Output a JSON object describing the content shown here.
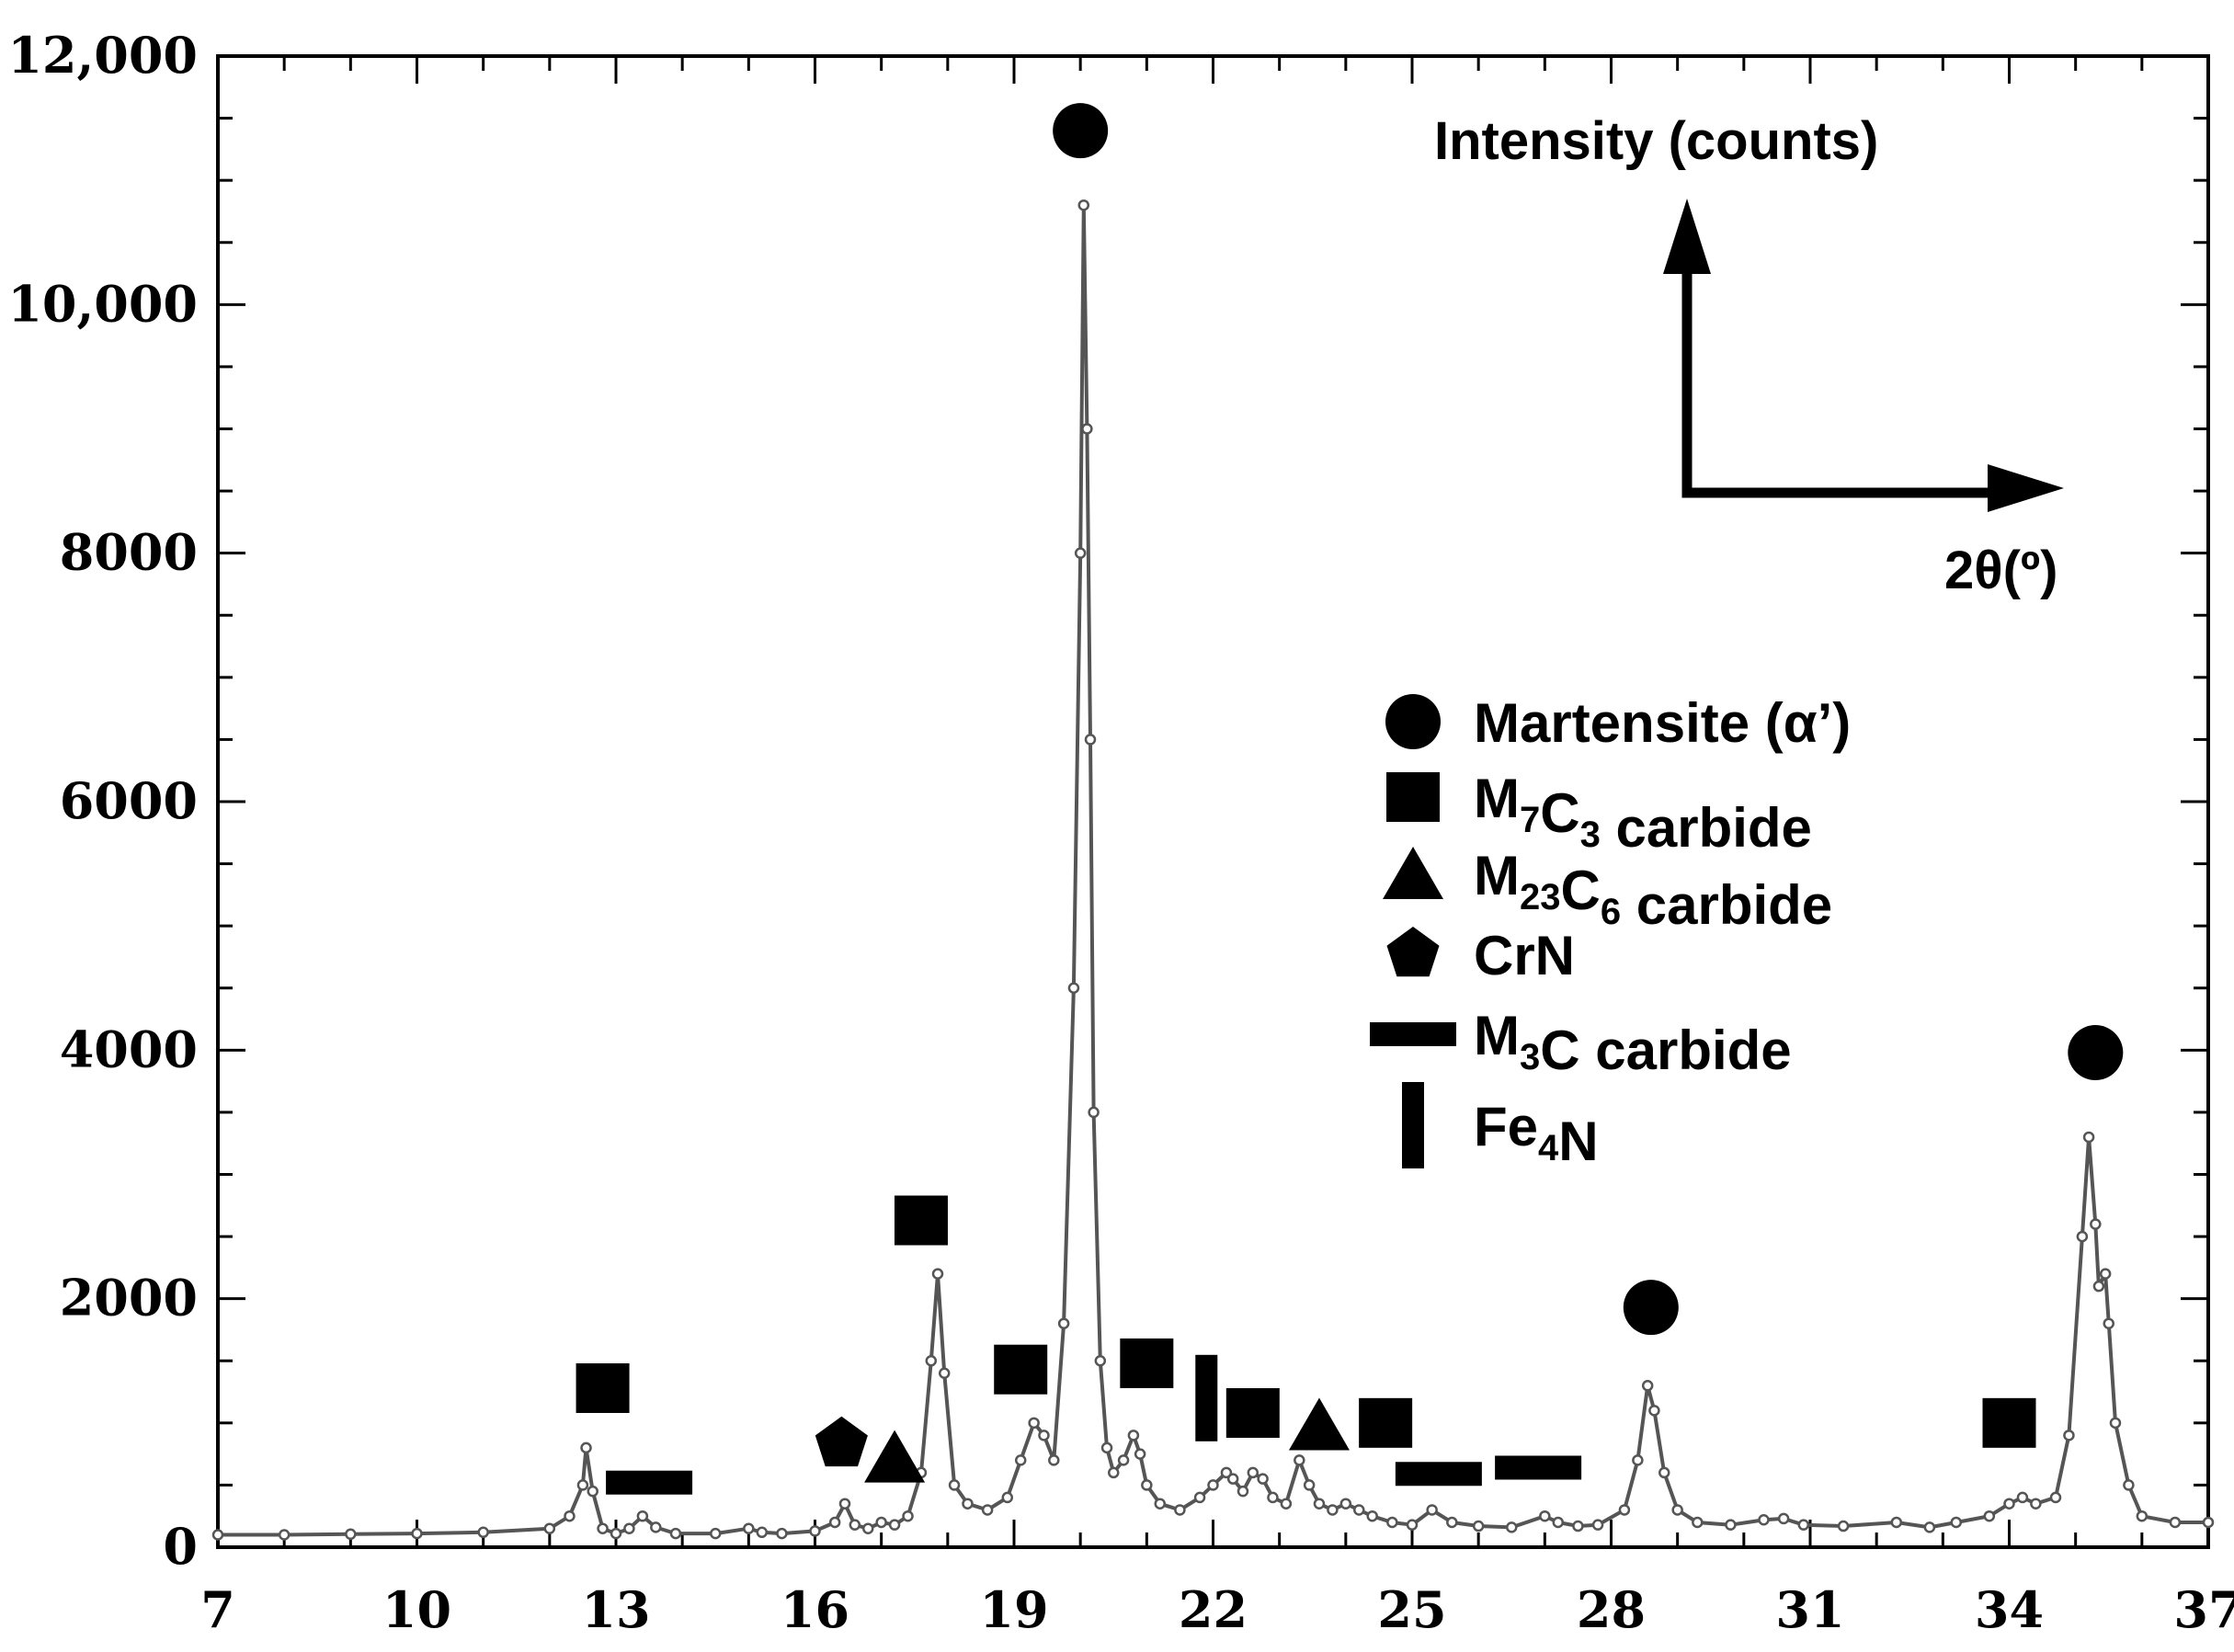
{
  "chart_data": {
    "type": "line",
    "title": "",
    "xlabel": "2θ(º)",
    "ylabel": "Intensity (counts)",
    "xlim": [
      7,
      37
    ],
    "ylim": [
      0,
      12000
    ],
    "grid": false,
    "x_tick_labels": [
      "7",
      "10",
      "13",
      "16",
      "19",
      "22",
      "25",
      "28",
      "31",
      "34",
      "37"
    ],
    "y_tick_labels": [
      "0",
      "2000",
      "4000",
      "6000",
      "8000",
      "10,000",
      "12,000"
    ],
    "line_color": "#555555",
    "series": [
      {
        "x": [
          7.0,
          8.0,
          9.0,
          10.0,
          11.0,
          12.0,
          12.3,
          12.5,
          12.55,
          12.65,
          12.8,
          13.0,
          13.2,
          13.4,
          13.6,
          13.9,
          14.5,
          15.0,
          15.2,
          15.5,
          16.0,
          16.3,
          16.45,
          16.6,
          16.8,
          17.0,
          17.2,
          17.4,
          17.6,
          17.75,
          17.85,
          17.95,
          18.1,
          18.3,
          18.6,
          18.9,
          19.1,
          19.3,
          19.45,
          19.6,
          19.75,
          19.9,
          20.0,
          20.05,
          20.1,
          20.15,
          20.2,
          20.3,
          20.4,
          20.5,
          20.65,
          20.8,
          20.9,
          21.0,
          21.2,
          21.5,
          21.8,
          22.0,
          22.2,
          22.3,
          22.45,
          22.6,
          22.75,
          22.9,
          23.1,
          23.3,
          23.45,
          23.6,
          23.8,
          24.0,
          24.2,
          24.4,
          24.7,
          25.0,
          25.3,
          25.6,
          26.0,
          26.5,
          27.0,
          27.2,
          27.5,
          27.8,
          28.2,
          28.4,
          28.55,
          28.65,
          28.8,
          29.0,
          29.3,
          29.8,
          30.3,
          30.6,
          30.9,
          31.5,
          32.3,
          32.8,
          33.2,
          33.7,
          34.0,
          34.2,
          34.4,
          34.7,
          34.9,
          35.1,
          35.2,
          35.3,
          35.35,
          35.45,
          35.5,
          35.6,
          35.8,
          36.0,
          36.5,
          37.0
        ],
        "y": [
          100,
          100,
          105,
          110,
          120,
          150,
          250,
          500,
          800,
          450,
          150,
          110,
          150,
          250,
          160,
          110,
          110,
          150,
          120,
          110,
          130,
          200,
          350,
          180,
          150,
          200,
          180,
          250,
          600,
          1500,
          2200,
          1400,
          500,
          350,
          300,
          400,
          700,
          1000,
          900,
          700,
          1800,
          4500,
          8000,
          10800,
          9000,
          6500,
          3500,
          1500,
          800,
          600,
          700,
          900,
          750,
          500,
          350,
          300,
          400,
          500,
          600,
          550,
          450,
          600,
          550,
          400,
          350,
          700,
          500,
          350,
          300,
          350,
          300,
          250,
          200,
          180,
          300,
          200,
          170,
          160,
          250,
          200,
          170,
          180,
          300,
          700,
          1300,
          1100,
          600,
          300,
          200,
          180,
          220,
          230,
          180,
          170,
          200,
          160,
          200,
          250,
          350,
          400,
          350,
          400,
          900,
          2500,
          3300,
          2600,
          2100,
          2200,
          1800,
          1000,
          500,
          250,
          200,
          200
        ]
      }
    ],
    "annotations": {
      "arrow_y_label": "Intensity (counts)",
      "arrow_x_label": "2θ(º)"
    },
    "phase_markers": [
      {
        "shape": "circle",
        "x": 20.0,
        "y": 11400
      },
      {
        "shape": "circle",
        "x": 28.6,
        "y": 1930
      },
      {
        "shape": "circle",
        "x": 35.3,
        "y": 3980
      },
      {
        "shape": "square",
        "x": 12.8,
        "y": 1280
      },
      {
        "shape": "square",
        "x": 17.6,
        "y": 2630
      },
      {
        "shape": "square",
        "x": 19.1,
        "y": 1430
      },
      {
        "shape": "square",
        "x": 21.0,
        "y": 1480
      },
      {
        "shape": "square",
        "x": 22.6,
        "y": 1080
      },
      {
        "shape": "square",
        "x": 24.6,
        "y": 1000
      },
      {
        "shape": "square",
        "x": 34.0,
        "y": 1000
      },
      {
        "shape": "triangle",
        "x": 17.2,
        "y": 720
      },
      {
        "shape": "triangle",
        "x": 23.6,
        "y": 980
      },
      {
        "shape": "pentagon",
        "x": 16.4,
        "y": 830
      },
      {
        "shape": "bar",
        "x": 13.5,
        "y": 520
      },
      {
        "shape": "bar",
        "x": 25.4,
        "y": 590
      },
      {
        "shape": "bar",
        "x": 26.9,
        "y": 640
      },
      {
        "shape": "vbar",
        "x": 21.9,
        "y": 1200
      }
    ],
    "legend": {
      "position": "middle-right",
      "entries": [
        {
          "shape": "circle",
          "name": "Martensite (α’)",
          "base": "Martensite (α’)",
          "subs": []
        },
        {
          "shape": "square",
          "name": "M7C3 carbide",
          "base": "",
          "subs": [
            [
              "M",
              "7"
            ],
            [
              "C",
              "3"
            ]
          ],
          "tail": " carbide"
        },
        {
          "shape": "triangle",
          "name": "M23C6 carbide",
          "base": "",
          "subs": [
            [
              "M",
              "23"
            ],
            [
              "C",
              "6"
            ]
          ],
          "tail": " carbide"
        },
        {
          "shape": "pentagon",
          "name": "CrN",
          "base": "CrN",
          "subs": []
        },
        {
          "shape": "bar",
          "name": "M3C carbide",
          "base": "",
          "subs": [
            [
              "M",
              "3"
            ],
            [
              "C",
              ""
            ]
          ],
          "tail": " carbide"
        },
        {
          "shape": "vbar",
          "name": "Fe4N",
          "base": "",
          "subs": [
            [
              "Fe",
              "4"
            ],
            [
              "N",
              ""
            ]
          ],
          "tail": ""
        }
      ]
    }
  }
}
